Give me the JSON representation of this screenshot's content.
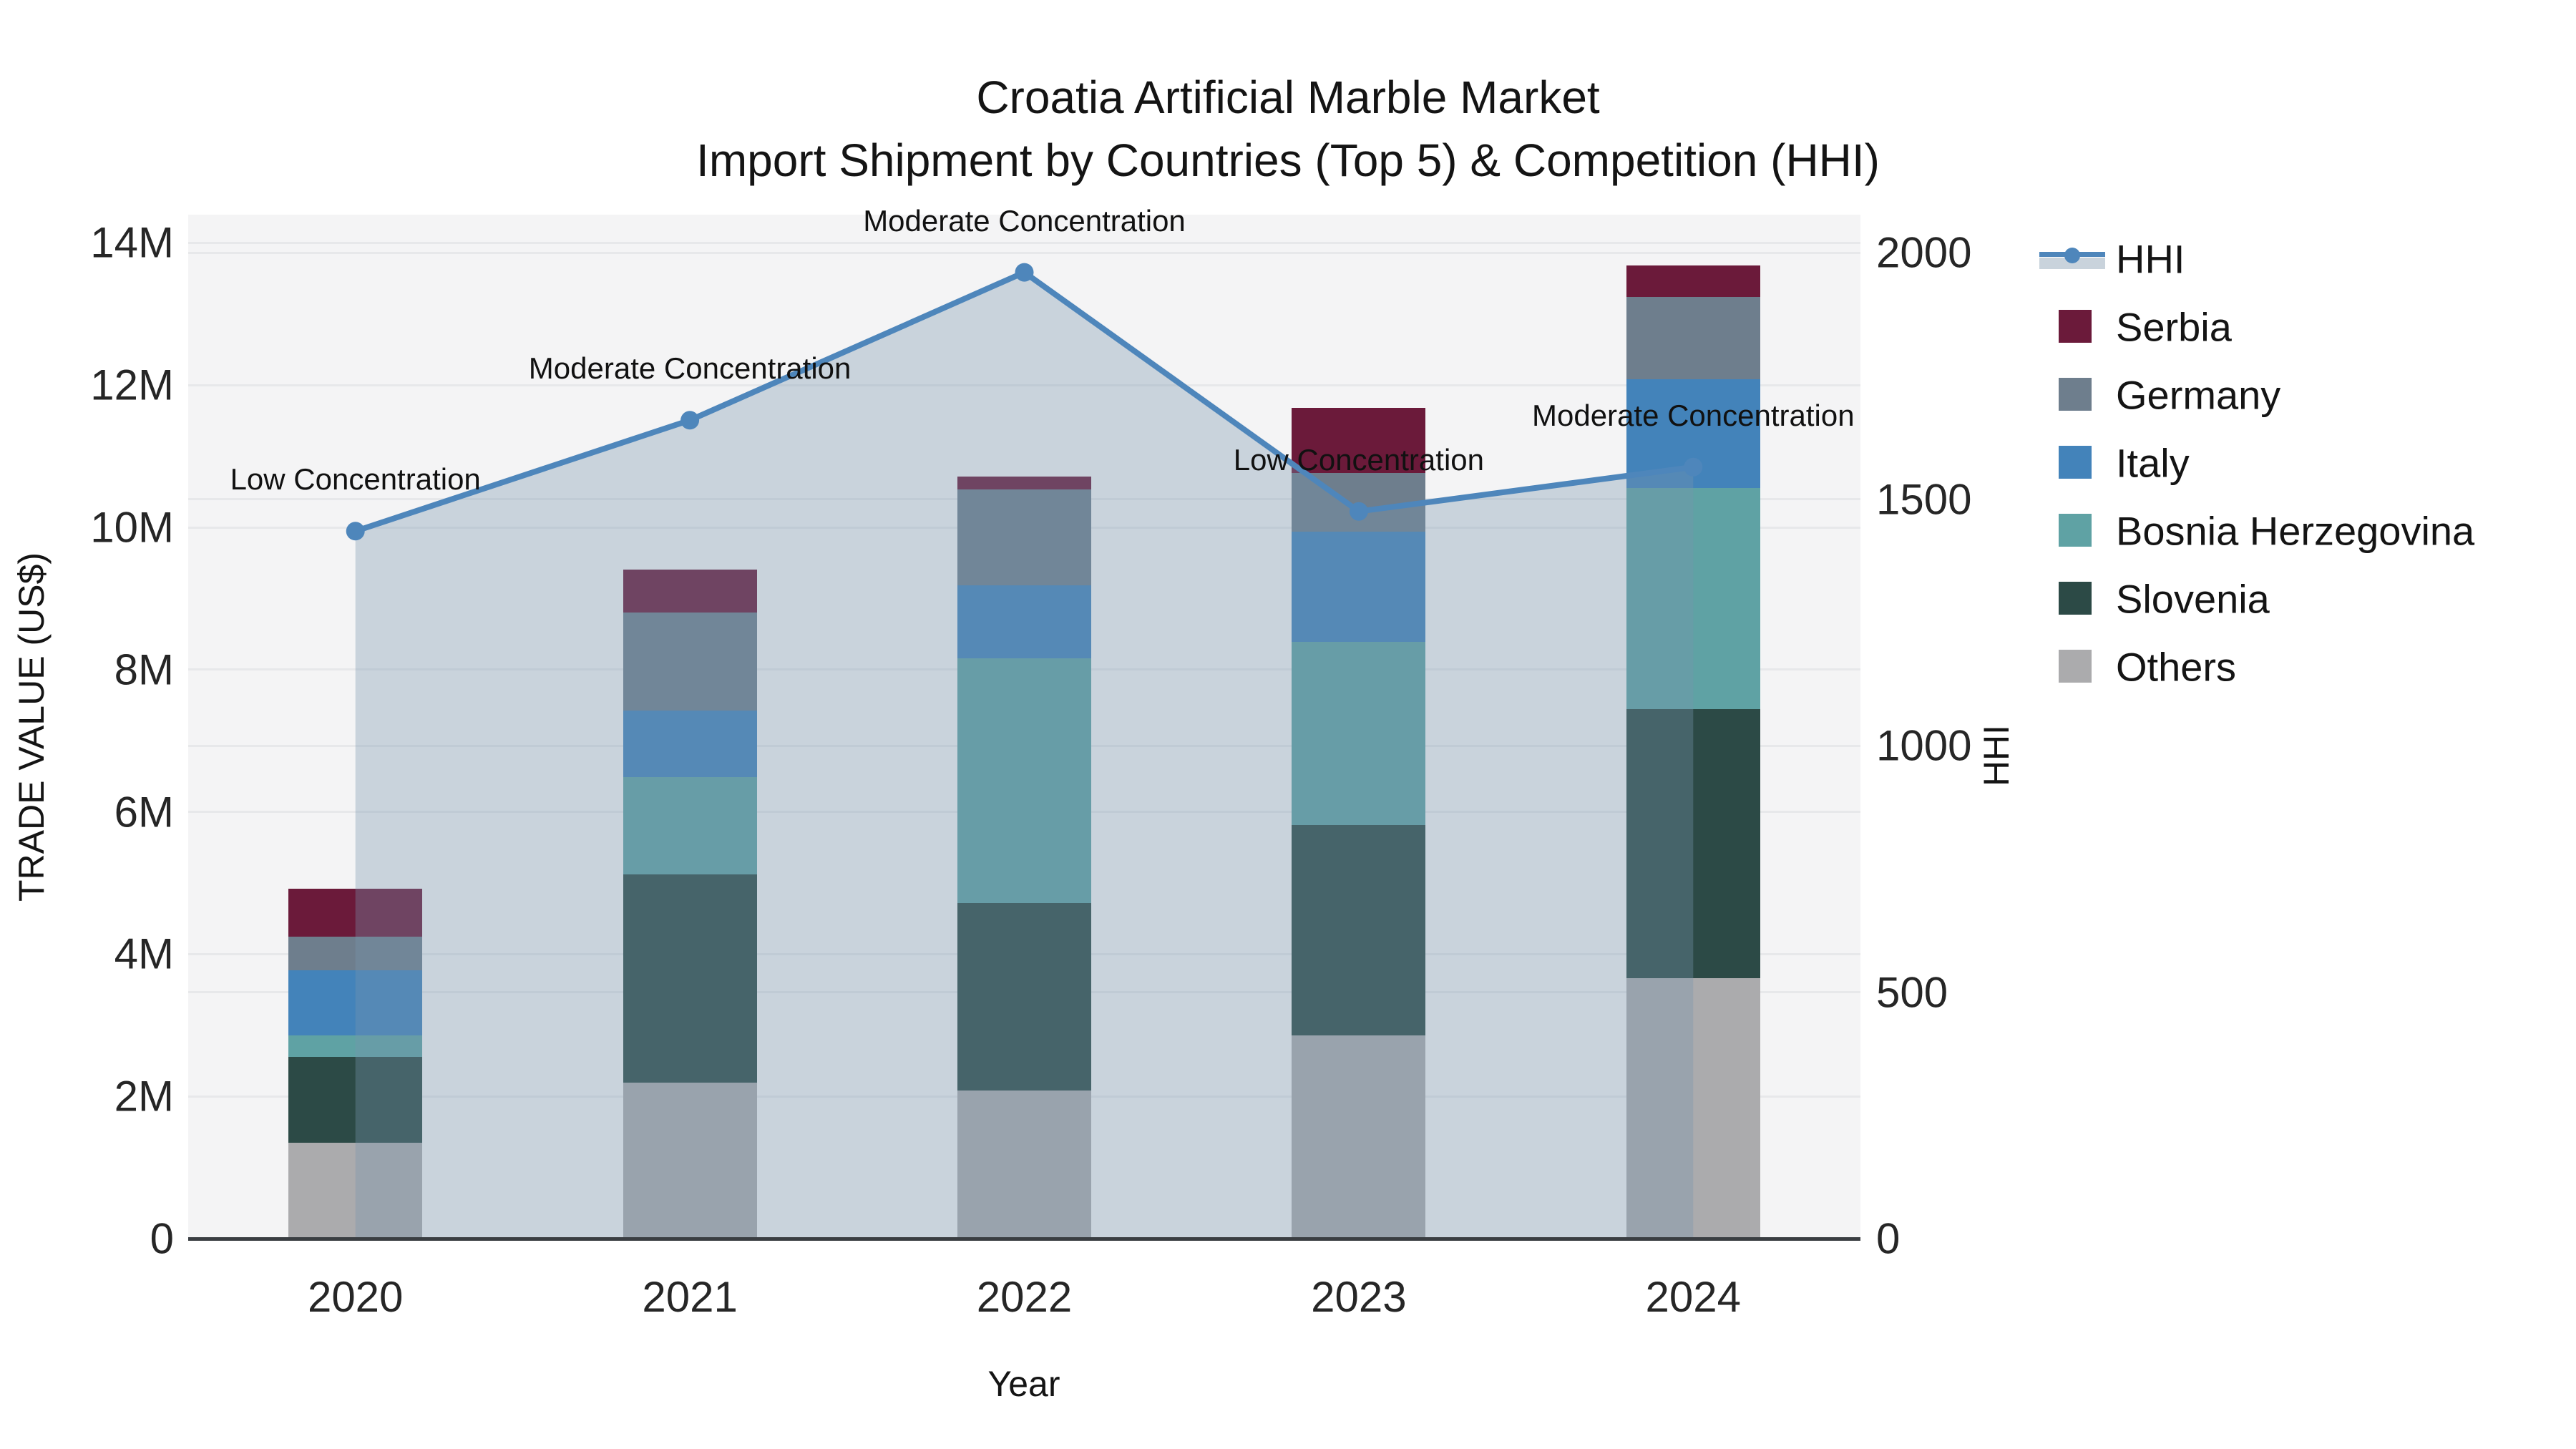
{
  "title": {
    "line1": "Croatia Artificial Marble Market",
    "line2": "Import Shipment by Countries (Top 5) & Competition (HHI)"
  },
  "axes": {
    "x_label": "Year",
    "y_left_label": "TRADE VALUE (US$)",
    "y_right_label": "HHI",
    "x_ticks": [
      "2020",
      "2021",
      "2022",
      "2023",
      "2024"
    ],
    "y_left_ticks": [
      {
        "label": "0",
        "value": 0
      },
      {
        "label": "2M",
        "value": 2
      },
      {
        "label": "4M",
        "value": 4
      },
      {
        "label": "6M",
        "value": 6
      },
      {
        "label": "8M",
        "value": 8
      },
      {
        "label": "10M",
        "value": 10
      },
      {
        "label": "12M",
        "value": 12
      },
      {
        "label": "14M",
        "value": 14
      }
    ],
    "y_right_ticks": [
      {
        "label": "0",
        "value": 0
      },
      {
        "label": "500",
        "value": 500
      },
      {
        "label": "1000",
        "value": 1000
      },
      {
        "label": "1500",
        "value": 1500
      },
      {
        "label": "2000",
        "value": 2000
      }
    ]
  },
  "legend": {
    "position": "right",
    "items": [
      {
        "label": "HHI",
        "color": "#4e86bb",
        "type": "line"
      },
      {
        "label": "Serbia",
        "color": "#6b1a3a",
        "type": "patch"
      },
      {
        "label": "Germany",
        "color": "#6e7e8d",
        "type": "patch"
      },
      {
        "label": "Italy",
        "color": "#4383ba",
        "type": "patch"
      },
      {
        "label": "Bosnia Herzegovina",
        "color": "#5fa2a4",
        "type": "patch"
      },
      {
        "label": "Slovenia",
        "color": "#2c4a46",
        "type": "patch"
      },
      {
        "label": "Others",
        "color": "#ababad",
        "type": "patch"
      }
    ]
  },
  "chart_data": {
    "type": "stacked_bar_with_line",
    "title": "Croatia Artificial Marble Market — Import Shipment by Countries (Top 5) & Competition (HHI)",
    "categories": [
      2020,
      2021,
      2022,
      2023,
      2024
    ],
    "bar_unit": "trade value, millions of US$",
    "stack_order_bottom_to_top": [
      "Others",
      "Slovenia",
      "Bosnia Herzegovina",
      "Italy",
      "Germany",
      "Serbia"
    ],
    "series": [
      {
        "name": "Others",
        "color": "#ababad",
        "values": [
          1.35,
          2.19,
          2.08,
          2.86,
          3.66
        ]
      },
      {
        "name": "Slovenia",
        "color": "#2c4a46",
        "values": [
          1.21,
          2.93,
          2.64,
          2.96,
          3.78
        ]
      },
      {
        "name": "Bosnia Herzegovina",
        "color": "#5fa2a4",
        "values": [
          0.3,
          1.37,
          3.44,
          2.57,
          3.11
        ]
      },
      {
        "name": "Italy",
        "color": "#4383ba",
        "values": [
          0.91,
          0.93,
          1.03,
          1.55,
          1.53
        ]
      },
      {
        "name": "Germany",
        "color": "#6e7e8d",
        "values": [
          0.48,
          1.38,
          1.34,
          0.82,
          1.16
        ]
      },
      {
        "name": "Serbia",
        "color": "#6b1a3a",
        "values": [
          0.67,
          0.61,
          0.18,
          0.92,
          0.44
        ]
      }
    ],
    "bar_totals_musd": [
      4.92,
      9.41,
      10.71,
      11.68,
      13.68
    ],
    "line": {
      "name": "HHI",
      "color": "#4e86bb",
      "area_fill": "rgba(120,150,175,0.35)",
      "values": [
        1435,
        1660,
        1960,
        1475,
        1565
      ],
      "annotations": [
        "Low Concentration",
        "Moderate Concentration",
        "Moderate Concentration",
        "Low Concentration",
        "Moderate Concentration"
      ]
    },
    "xlabel": "Year",
    "ylabel_left": "TRADE VALUE (US$)",
    "ylabel_right": "HHI",
    "ylim_left_musd": [
      0,
      14.4
    ],
    "ylim_right_hhi": [
      0,
      2077
    ],
    "grid": true,
    "legend_position": "right",
    "plot_background": "#f4f4f5",
    "gridline_color": "#e7e8ea"
  }
}
